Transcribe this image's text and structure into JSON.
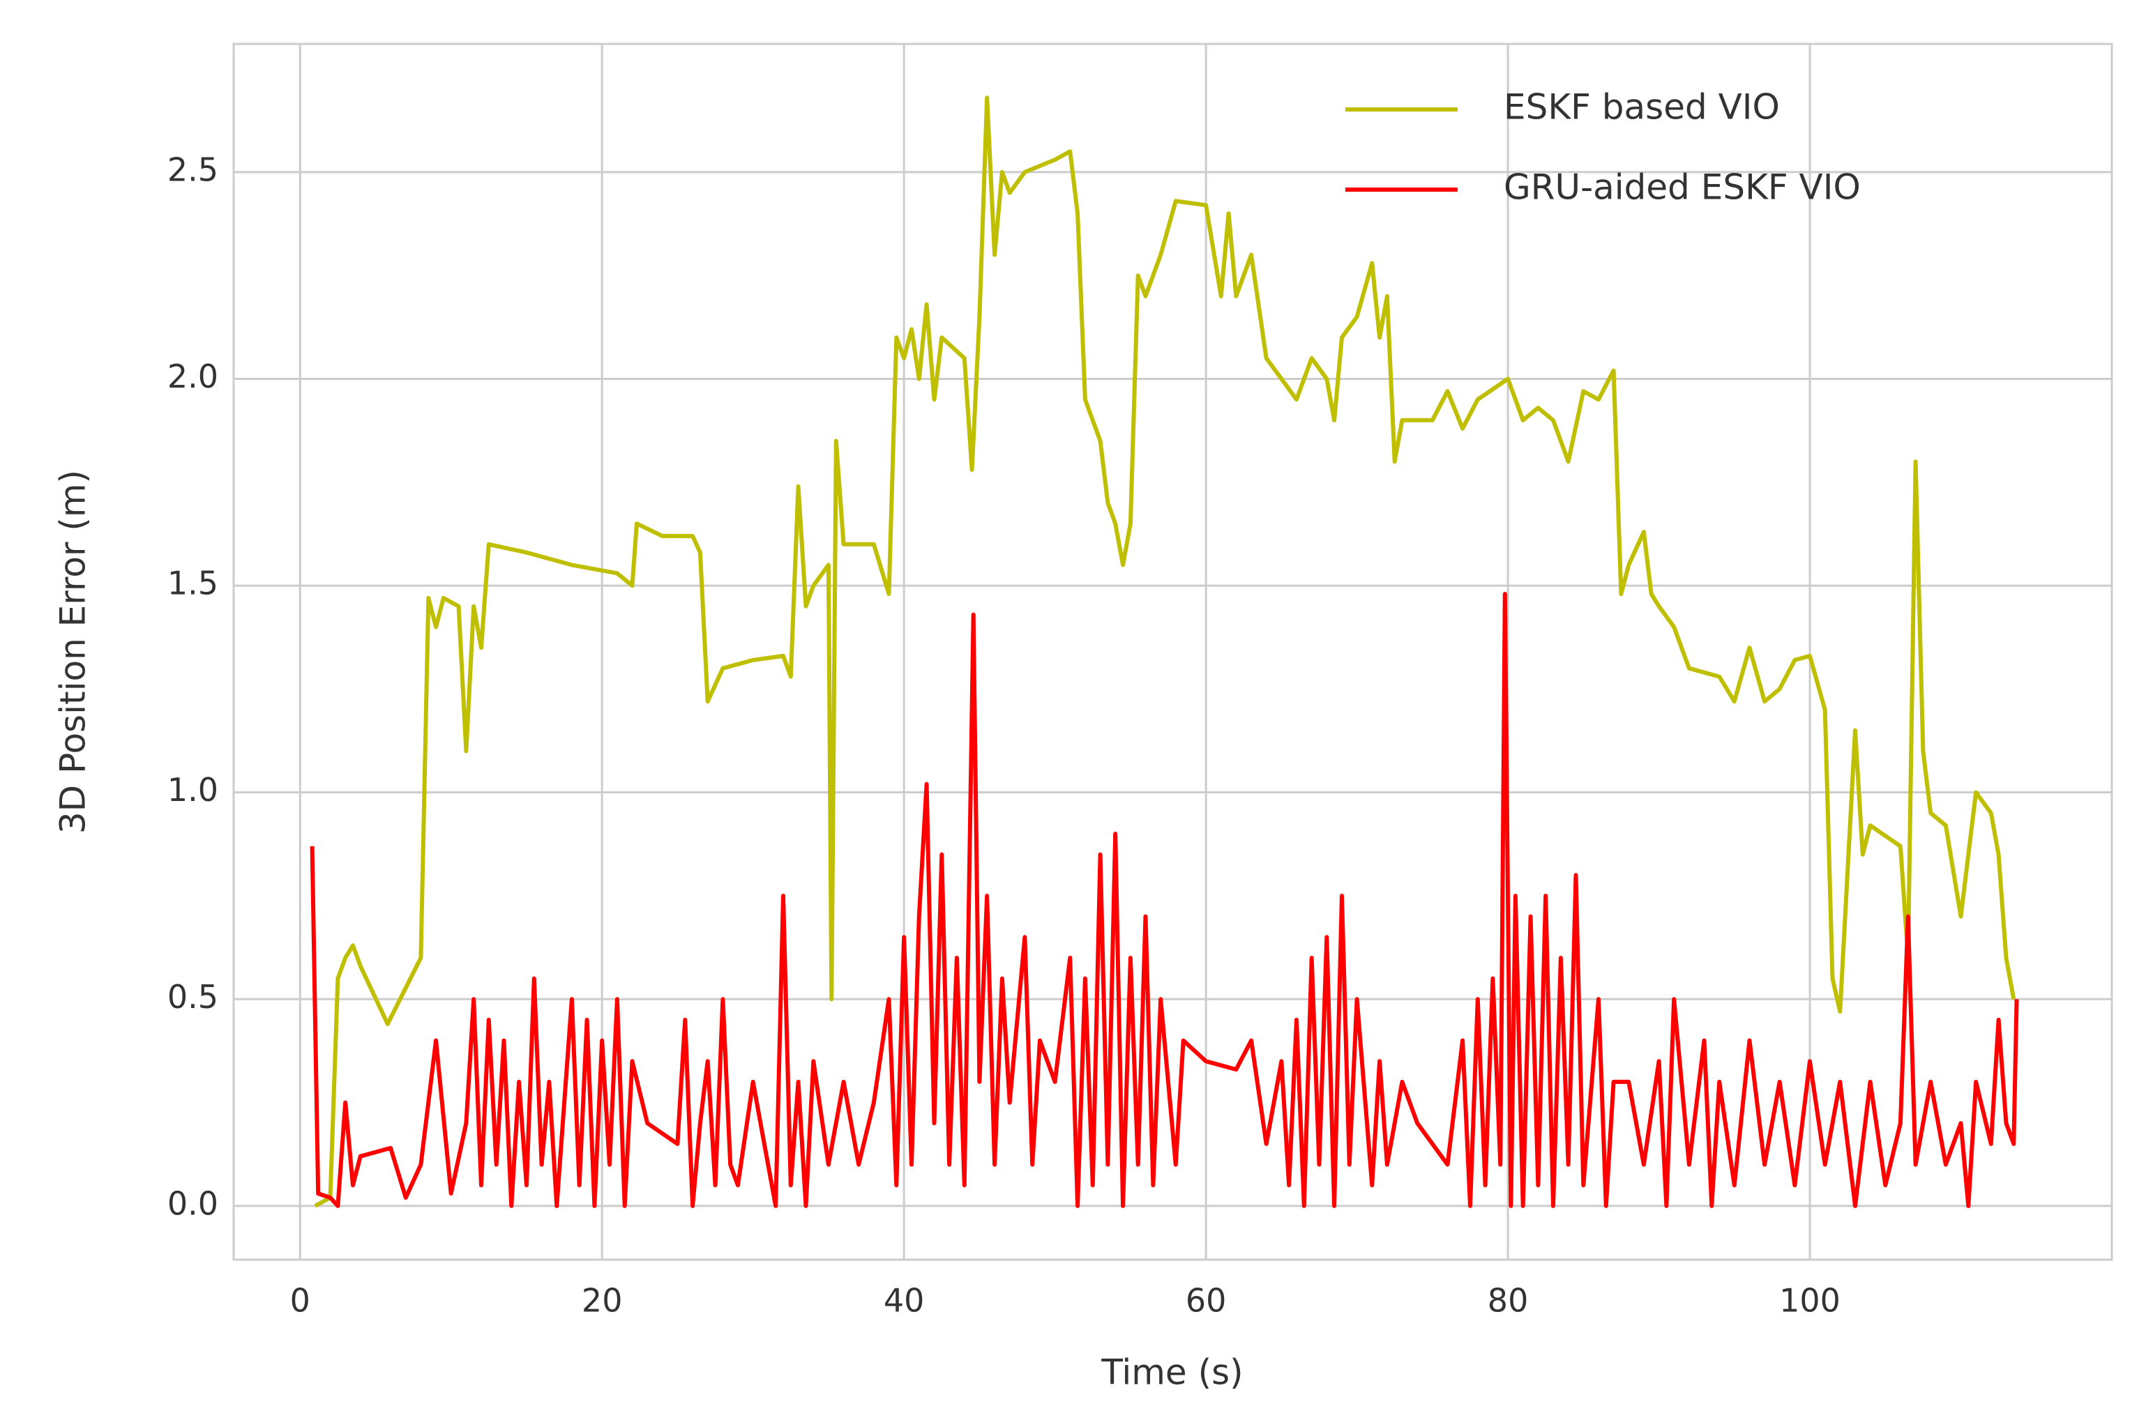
{
  "chart_data": {
    "type": "line",
    "xlabel": "Time (s)",
    "ylabel": "3D Position Error (m)",
    "xlim": [
      -4.4,
      120
    ],
    "ylim": [
      -0.13,
      2.81
    ],
    "xticks": [
      0,
      20,
      40,
      60,
      80,
      100
    ],
    "yticks": [
      {
        "value": 0,
        "label": "0.0"
      },
      0.5,
      {
        "value": 1,
        "label": "1.0"
      },
      1.5,
      {
        "value": 2,
        "label": "2.0"
      },
      2.5
    ],
    "grid": true,
    "legend": "upper right",
    "series": [
      {
        "name": "ESKF based VIO",
        "color": "#bfbf00",
        "x": [
          1.0,
          2.0,
          2.5,
          3,
          3.5,
          4,
          5.8,
          8,
          8.5,
          9,
          9.5,
          10.5,
          11,
          11.5,
          12,
          12.5,
          15,
          18,
          21,
          22,
          22.3,
          24,
          26,
          26.5,
          27,
          28,
          30,
          32,
          32.5,
          33,
          33.5,
          34,
          35,
          35.2,
          35.5,
          36,
          38,
          39,
          39.5,
          40,
          40.5,
          41,
          41.5,
          42,
          42.5,
          44,
          44.5,
          45,
          45.5,
          46,
          46.5,
          47,
          48,
          50,
          51,
          51.5,
          52,
          53,
          53.5,
          54,
          54.5,
          55,
          55.5,
          56,
          57,
          58,
          60,
          61,
          61.5,
          62,
          63,
          64,
          65,
          66,
          67,
          68,
          68.5,
          69,
          70,
          71,
          71.5,
          72,
          72.5,
          73,
          75,
          76,
          77,
          78,
          80,
          81,
          82,
          83,
          84,
          85,
          86,
          87,
          87.5,
          88,
          89,
          89.5,
          90,
          91,
          92,
          94,
          95,
          96,
          97,
          98,
          99,
          100,
          101,
          101.5,
          102,
          103,
          103.5,
          104,
          106,
          106.5,
          107,
          107.5,
          108,
          109,
          110,
          111,
          112,
          112.5,
          113,
          113.5
        ],
        "values": [
          0.0,
          0.02,
          0.55,
          0.6,
          0.63,
          0.58,
          0.44,
          0.6,
          1.47,
          1.4,
          1.47,
          1.45,
          1.1,
          1.45,
          1.35,
          1.6,
          1.58,
          1.55,
          1.53,
          1.5,
          1.65,
          1.62,
          1.62,
          1.58,
          1.22,
          1.3,
          1.32,
          1.33,
          1.28,
          1.74,
          1.45,
          1.5,
          1.55,
          0.5,
          1.85,
          1.6,
          1.6,
          1.48,
          2.1,
          2.05,
          2.12,
          2.0,
          2.18,
          1.95,
          2.1,
          2.05,
          1.78,
          2.15,
          2.68,
          2.3,
          2.5,
          2.45,
          2.5,
          2.53,
          2.55,
          2.4,
          1.95,
          1.85,
          1.7,
          1.65,
          1.55,
          1.65,
          2.25,
          2.2,
          2.3,
          2.43,
          2.42,
          2.2,
          2.4,
          2.2,
          2.3,
          2.05,
          2.0,
          1.95,
          2.05,
          2.0,
          1.9,
          2.1,
          2.15,
          2.28,
          2.1,
          2.2,
          1.8,
          1.9,
          1.9,
          1.97,
          1.88,
          1.95,
          2.0,
          1.9,
          1.93,
          1.9,
          1.8,
          1.97,
          1.95,
          2.02,
          1.48,
          1.55,
          1.63,
          1.48,
          1.45,
          1.4,
          1.3,
          1.28,
          1.22,
          1.35,
          1.22,
          1.25,
          1.32,
          1.33,
          1.2,
          0.55,
          0.47,
          1.15,
          0.85,
          0.92,
          0.87,
          0.6,
          1.8,
          1.1,
          0.95,
          0.92,
          0.7,
          1.0,
          0.95,
          0.85,
          0.6,
          0.5
        ]
      },
      {
        "name": "GRU-aided ESKF VIO",
        "color": "#ff0000",
        "x": [
          0.8,
          1.2,
          2,
          2.5,
          3,
          3.5,
          4,
          6,
          7,
          8,
          9,
          10,
          11,
          11.5,
          12,
          12.5,
          13,
          13.5,
          14,
          14.5,
          15,
          15.5,
          16,
          16.5,
          17,
          18,
          18.5,
          19,
          19.5,
          20,
          20.5,
          21,
          21.5,
          22,
          23,
          25,
          25.5,
          26,
          26.5,
          27,
          27.5,
          28,
          28.5,
          29,
          30,
          31,
          31.5,
          32,
          32.5,
          33,
          33.5,
          34,
          35,
          36,
          37,
          38,
          39,
          39.5,
          40,
          40.5,
          41,
          41.5,
          42,
          42.5,
          43,
          43.5,
          44,
          44.6,
          45,
          45.5,
          46,
          46.5,
          47,
          48,
          48.5,
          49,
          50,
          51,
          51.5,
          52,
          52.5,
          53,
          53.5,
          54,
          54.5,
          55,
          55.5,
          56,
          56.5,
          57,
          58,
          58.5,
          60,
          62,
          63,
          64,
          65,
          65.5,
          66,
          66.5,
          67,
          67.5,
          68,
          68.5,
          69,
          69.5,
          70,
          71,
          71.5,
          72,
          73,
          74,
          76,
          77,
          77.5,
          78,
          78.5,
          79,
          79.5,
          79.8,
          80.2,
          80.5,
          81,
          81.5,
          82,
          82.5,
          83,
          83.5,
          84,
          84.5,
          85,
          86,
          86.5,
          87,
          88,
          89,
          90,
          90.5,
          91,
          92,
          93,
          93.5,
          94,
          95,
          96,
          97,
          98,
          99,
          100,
          101,
          102,
          103,
          104,
          105,
          106,
          106.5,
          107,
          108,
          109,
          110,
          110.5,
          111,
          112,
          112.5,
          113,
          113.5,
          113.7
        ],
        "values": [
          0.87,
          0.03,
          0.02,
          0.0,
          0.25,
          0.05,
          0.12,
          0.14,
          0.02,
          0.1,
          0.4,
          0.03,
          0.2,
          0.5,
          0.05,
          0.45,
          0.1,
          0.4,
          0.0,
          0.3,
          0.05,
          0.55,
          0.1,
          0.3,
          0.0,
          0.5,
          0.05,
          0.45,
          0.0,
          0.4,
          0.1,
          0.5,
          0.0,
          0.35,
          0.2,
          0.15,
          0.45,
          0.0,
          0.2,
          0.35,
          0.05,
          0.5,
          0.1,
          0.05,
          0.3,
          0.1,
          0.0,
          0.75,
          0.05,
          0.3,
          0.0,
          0.35,
          0.1,
          0.3,
          0.1,
          0.25,
          0.5,
          0.05,
          0.65,
          0.1,
          0.7,
          1.02,
          0.2,
          0.85,
          0.1,
          0.6,
          0.05,
          1.43,
          0.3,
          0.75,
          0.1,
          0.55,
          0.25,
          0.65,
          0.1,
          0.4,
          0.3,
          0.6,
          0.0,
          0.55,
          0.05,
          0.85,
          0.1,
          0.9,
          0.0,
          0.6,
          0.1,
          0.7,
          0.05,
          0.5,
          0.1,
          0.4,
          0.35,
          0.33,
          0.4,
          0.15,
          0.35,
          0.05,
          0.45,
          0.0,
          0.6,
          0.1,
          0.65,
          0.0,
          0.75,
          0.1,
          0.5,
          0.05,
          0.35,
          0.1,
          0.3,
          0.2,
          0.1,
          0.4,
          0.0,
          0.5,
          0.05,
          0.55,
          0.1,
          1.48,
          0.0,
          0.75,
          0.0,
          0.7,
          0.05,
          0.75,
          0.0,
          0.6,
          0.1,
          0.8,
          0.05,
          0.5,
          0.0,
          0.3,
          0.3,
          0.1,
          0.35,
          0.0,
          0.5,
          0.1,
          0.4,
          0.0,
          0.3,
          0.05,
          0.4,
          0.1,
          0.3,
          0.05,
          0.35,
          0.1,
          0.3,
          0.0,
          0.3,
          0.05,
          0.2,
          0.7,
          0.1,
          0.3,
          0.1,
          0.2,
          0.0,
          0.3,
          0.15,
          0.45,
          0.2,
          0.15,
          0.5
        ]
      }
    ]
  }
}
